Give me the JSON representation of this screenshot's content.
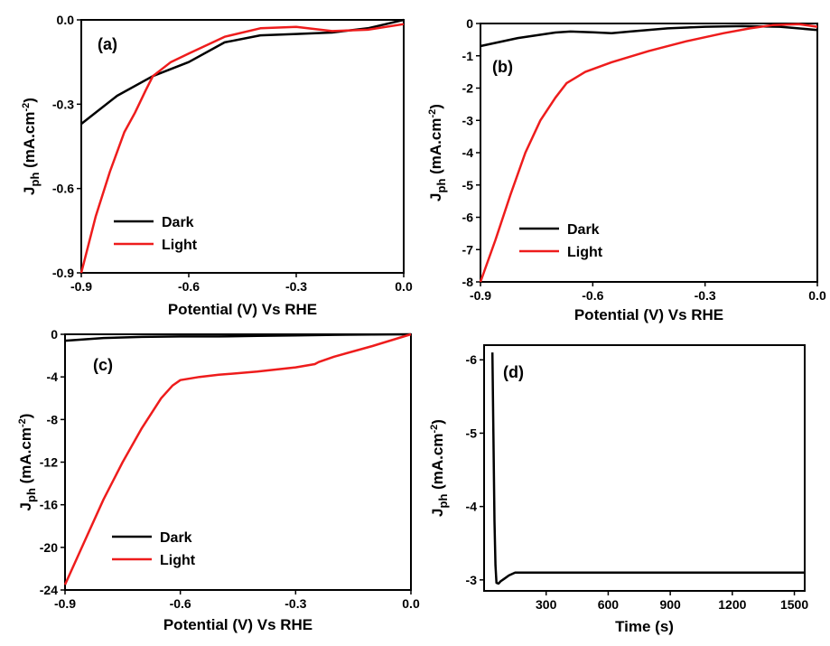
{
  "chart_data": [
    {
      "panel_label": "(a)",
      "type": "line",
      "xlabel": "Potential (V) Vs RHE",
      "ylabel": {
        "main": "J",
        "sub": "ph",
        "unit": " (mA.cm",
        "sup": "-2",
        "close": ")"
      },
      "xlim": [
        -0.9,
        0.0
      ],
      "ylim": [
        -0.9,
        0.0
      ],
      "xticks": [
        "-0.9",
        "-0.6",
        "-0.3",
        "0.0"
      ],
      "yticks": [
        "-0.9",
        "-0.6",
        "-0.3",
        "0.0"
      ],
      "legend": "lower-left",
      "series": [
        {
          "name": "Dark",
          "color": "#000000",
          "x": [
            -0.9,
            -0.8,
            -0.7,
            -0.6,
            -0.5,
            -0.4,
            -0.3,
            -0.2,
            -0.1,
            -0.05,
            0.0
          ],
          "y": [
            -0.37,
            -0.27,
            -0.2,
            -0.15,
            -0.08,
            -0.055,
            -0.05,
            -0.045,
            -0.03,
            -0.015,
            0.0
          ]
        },
        {
          "name": "Light",
          "color": "#ee1c1c",
          "x": [
            -0.9,
            -0.86,
            -0.82,
            -0.78,
            -0.75,
            -0.72,
            -0.7,
            -0.65,
            -0.6,
            -0.5,
            -0.4,
            -0.3,
            -0.2,
            -0.1,
            0.0
          ],
          "y": [
            -0.9,
            -0.7,
            -0.54,
            -0.4,
            -0.33,
            -0.25,
            -0.2,
            -0.15,
            -0.12,
            -0.06,
            -0.03,
            -0.025,
            -0.04,
            -0.035,
            -0.015
          ]
        }
      ]
    },
    {
      "panel_label": "(b)",
      "type": "line",
      "xlabel": "Potential (V) Vs RHE",
      "ylabel": {
        "main": "J",
        "sub": "ph",
        "unit": " (mA.cm",
        "sup": "-2",
        "close": ")"
      },
      "xlim": [
        -0.9,
        0.0
      ],
      "ylim": [
        -8,
        0
      ],
      "xticks": [
        "-0.9",
        "-0.6",
        "-0.3",
        "0.0"
      ],
      "yticks": [
        "-8",
        "-7",
        "-6",
        "-5",
        "-4",
        "-3",
        "-2",
        "-1",
        "0"
      ],
      "legend": "lower-left",
      "series": [
        {
          "name": "Dark",
          "color": "#000000",
          "x": [
            -0.9,
            -0.8,
            -0.7,
            -0.66,
            -0.6,
            -0.55,
            -0.5,
            -0.4,
            -0.3,
            -0.2,
            -0.1,
            0.0
          ],
          "y": [
            -0.7,
            -0.45,
            -0.28,
            -0.25,
            -0.27,
            -0.3,
            -0.25,
            -0.15,
            -0.1,
            -0.08,
            -0.1,
            -0.2
          ]
        },
        {
          "name": "Light",
          "color": "#ee1c1c",
          "x": [
            -0.9,
            -0.86,
            -0.82,
            -0.78,
            -0.74,
            -0.7,
            -0.67,
            -0.62,
            -0.55,
            -0.45,
            -0.35,
            -0.25,
            -0.18,
            -0.12,
            -0.05,
            0.0
          ],
          "y": [
            -8.0,
            -6.7,
            -5.3,
            -4.0,
            -3.0,
            -2.3,
            -1.85,
            -1.5,
            -1.2,
            -0.85,
            -0.55,
            -0.3,
            -0.15,
            -0.05,
            -0.02,
            -0.1
          ]
        }
      ]
    },
    {
      "panel_label": "(c)",
      "type": "line",
      "xlabel": "Potential (V) Vs RHE",
      "ylabel": {
        "main": "J",
        "sub": "ph",
        "unit": " (mA.cm",
        "sup": "-2",
        "close": ")"
      },
      "xlim": [
        -0.9,
        0.0
      ],
      "ylim": [
        -24,
        0
      ],
      "xticks": [
        "-0.9",
        "-0.6",
        "-0.3",
        "0.0"
      ],
      "yticks": [
        "-24",
        "-20",
        "-16",
        "-12",
        "-8",
        "-4",
        "0"
      ],
      "legend": "lower-left",
      "series": [
        {
          "name": "Dark",
          "color": "#000000",
          "x": [
            -0.9,
            -0.8,
            -0.7,
            -0.6,
            -0.5,
            -0.4,
            -0.3,
            -0.2,
            -0.1,
            0.0
          ],
          "y": [
            -0.6,
            -0.35,
            -0.25,
            -0.2,
            -0.2,
            -0.15,
            -0.1,
            -0.05,
            -0.02,
            0.0
          ]
        },
        {
          "name": "Light",
          "color": "#ee1c1c",
          "x": [
            -0.9,
            -0.85,
            -0.8,
            -0.75,
            -0.7,
            -0.65,
            -0.62,
            -0.6,
            -0.55,
            -0.5,
            -0.4,
            -0.3,
            -0.25,
            -0.24,
            -0.2,
            -0.1,
            0.0
          ],
          "y": [
            -23.5,
            -19.5,
            -15.5,
            -12.0,
            -8.8,
            -6.0,
            -4.8,
            -4.3,
            -4.0,
            -3.8,
            -3.5,
            -3.1,
            -2.8,
            -2.6,
            -2.1,
            -1.1,
            0.0
          ]
        }
      ]
    },
    {
      "panel_label": "(d)",
      "type": "line",
      "xlabel": "Time (s)",
      "ylabel": {
        "main": "J",
        "sub": "ph",
        "unit": " (mA.cm",
        "sup": "-2",
        "close": ")"
      },
      "xlim": [
        0,
        1550
      ],
      "ylim": [
        -6.2,
        -2.85
      ],
      "y_axis_reversed": true,
      "xticks": [
        "300",
        "600",
        "900",
        "1200",
        "1500"
      ],
      "xtick_values": [
        300,
        600,
        900,
        1200,
        1500
      ],
      "yticks": [
        "-6",
        "-5",
        "-4",
        "-3"
      ],
      "ytick_values": [
        -6,
        -5,
        -4,
        -3
      ],
      "series": [
        {
          "name": "",
          "color": "#000000",
          "x": [
            40,
            45,
            50,
            55,
            60,
            70,
            80,
            100,
            120,
            150,
            200,
            400,
            800,
            1200,
            1550
          ],
          "y": [
            -6.1,
            -5.0,
            -3.8,
            -3.2,
            -2.96,
            -2.95,
            -2.98,
            -3.02,
            -3.06,
            -3.1,
            -3.1,
            -3.1,
            -3.1,
            -3.1,
            -3.1
          ]
        }
      ]
    }
  ]
}
